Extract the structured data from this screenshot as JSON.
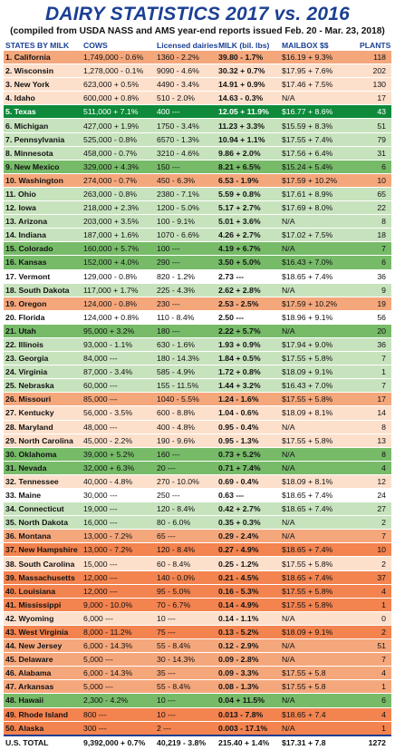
{
  "header": {
    "title": "DAIRY STATISTICS 2017 vs. 2016",
    "subtitle": "(compiled from USDA NASS and AMS year-end reports issued Feb. 20 - Mar. 23, 2018)"
  },
  "columns": [
    "STATES BY MILK",
    "COWS",
    "Licensed dairies",
    "MILK (bil. lbs)",
    "MAILBOX $$",
    "PLANTS"
  ],
  "colors": {
    "title": "#1b3f93",
    "orange": "#f5a77c",
    "peach": "#fde0cc",
    "green": "#c7e3bd",
    "dark_green": "#77bb69",
    "red": "#f3834f",
    "texas_highlight": "#0e8a3a"
  },
  "rows": [
    {
      "state": "1. California",
      "cows": "1,749,000 - 0.6%",
      "dairies": "1360 - 2.2%",
      "milk": "39.80 - 1.7%",
      "mailbox": "$16.19 + 9.3%",
      "plants": "118",
      "tone": "orange"
    },
    {
      "state": "2. Wisconsin",
      "cows": "1,278,000 - 0.1%",
      "dairies": "9090 - 4.6%",
      "milk": "30.32 + 0.7%",
      "mailbox": "$17.95 + 7.6%",
      "plants": "202",
      "tone": "peach"
    },
    {
      "state": "3. New York",
      "cows": "623,000 + 0.5%",
      "dairies": "4490 - 3.4%",
      "milk": "14.91 + 0.9%",
      "mailbox": "$17.46 + 7.5%",
      "plants": "130",
      "tone": "peach"
    },
    {
      "state": "4. Idaho",
      "cows": "600,000 + 0.8%",
      "dairies": "510 - 2.0%",
      "milk": "14.63 - 0.3%",
      "mailbox": "N/A",
      "plants": "17",
      "tone": "peach"
    },
    {
      "state": "5. Texas",
      "cows": "511,000 + 7.1%",
      "dairies": "400 ---",
      "milk": "12.05 + 11.9%",
      "mailbox": "$16.77 + 8.6%",
      "plants": "43",
      "tone": "top"
    },
    {
      "state": "6. Michigan",
      "cows": "427,000 + 1.9%",
      "dairies": "1750 - 3.4%",
      "milk": "11.23 + 3.3%",
      "mailbox": "$15.59 + 8.3%",
      "plants": "51",
      "tone": "green"
    },
    {
      "state": "7. Pennsylvania",
      "cows": "525,000 - 0.8%",
      "dairies": "6570 - 1.3%",
      "milk": "10.94 + 1.1%",
      "mailbox": "$17.55 + 7.4%",
      "plants": "79",
      "tone": "green"
    },
    {
      "state": "8. Minnesota",
      "cows": "458,000 - 0.7%",
      "dairies": "3210 - 4.6%",
      "milk": "9.86 + 2.0%",
      "mailbox": "$17.56 + 6.4%",
      "plants": "31",
      "tone": "green"
    },
    {
      "state": "9. New Mexico",
      "cows": "329,000 + 4.3%",
      "dairies": "150 ---",
      "milk": "8.21 + 6.5%",
      "mailbox": "$15.24 + 5.4%",
      "plants": "6",
      "tone": "dgreen"
    },
    {
      "state": "10. Washington",
      "cows": "274,000 - 0.7%",
      "dairies": "450 - 6.3%",
      "milk": "6.53 - 1.9%",
      "mailbox": "$17.59 + 10.2%",
      "plants": "10",
      "tone": "orange"
    },
    {
      "state": "11. Ohio",
      "cows": "263,000 - 0.8%",
      "dairies": "2380 - 7.1%",
      "milk": "5.59 + 0.8%",
      "mailbox": "$17.61 + 8.9%",
      "plants": "65",
      "tone": "green"
    },
    {
      "state": "12. Iowa",
      "cows": "218,000 + 2.3%",
      "dairies": "1200 - 5.0%",
      "milk": "5.17 + 2.7%",
      "mailbox": "$17.69 + 8.0%",
      "plants": "22",
      "tone": "green"
    },
    {
      "state": "13. Arizona",
      "cows": "203,000 + 3.5%",
      "dairies": "100 - 9.1%",
      "milk": "5.01 + 3.6%",
      "mailbox": "N/A",
      "plants": "8",
      "tone": "green"
    },
    {
      "state": "14. Indiana",
      "cows": "187,000 + 1.6%",
      "dairies": "1070 - 6.6%",
      "milk": "4.26 + 2.7%",
      "mailbox": "$17.02 + 7.5%",
      "plants": "18",
      "tone": "green"
    },
    {
      "state": "15. Colorado",
      "cows": "160,000 + 5.7%",
      "dairies": "100 ---",
      "milk": "4.19 + 6.7%",
      "mailbox": "N/A",
      "plants": "7",
      "tone": "dgreen"
    },
    {
      "state": "16. Kansas",
      "cows": "152,000 + 4.0%",
      "dairies": "290 ---",
      "milk": "3.50 + 5.0%",
      "mailbox": "$16.43 + 7.0%",
      "plants": "6",
      "tone": "dgreen"
    },
    {
      "state": "17. Vermont",
      "cows": "129,000 - 0.8%",
      "dairies": "820 - 1.2%",
      "milk": "2.73 ---",
      "mailbox": "$18.65 + 7.4%",
      "plants": "36",
      "tone": "white"
    },
    {
      "state": "18. South Dakota",
      "cows": "117,000 + 1.7%",
      "dairies": "225 - 4.3%",
      "milk": "2.62 + 2.8%",
      "mailbox": "N/A",
      "plants": "9",
      "tone": "green"
    },
    {
      "state": "19. Oregon",
      "cows": "124,000 - 0.8%",
      "dairies": "230 ---",
      "milk": "2.53 - 2.5%",
      "mailbox": "$17.59 + 10.2%",
      "plants": "19",
      "tone": "orange"
    },
    {
      "state": "20. Florida",
      "cows": "124,000 + 0.8%",
      "dairies": "110 - 8.4%",
      "milk": "2.50 ---",
      "mailbox": "$18.96 + 9.1%",
      "plants": "56",
      "tone": "white"
    },
    {
      "state": "21. Utah",
      "cows": "95,000 + 3.2%",
      "dairies": "180 ---",
      "milk": "2.22 + 5.7%",
      "mailbox": "N/A",
      "plants": "20",
      "tone": "dgreen"
    },
    {
      "state": "22. Illinois",
      "cows": "93,000 - 1.1%",
      "dairies": "630 - 1.6%",
      "milk": "1.93 + 0.9%",
      "mailbox": "$17.94 + 9.0%",
      "plants": "36",
      "tone": "green"
    },
    {
      "state": "23. Georgia",
      "cows": "84,000 ---",
      "dairies": "180 - 14.3%",
      "milk": "1.84 + 0.5%",
      "mailbox": "$17.55 + 5.8%",
      "plants": "7",
      "tone": "green"
    },
    {
      "state": "24. Virginia",
      "cows": "87,000 - 3.4%",
      "dairies": "585 - 4.9%",
      "milk": "1.72 + 0.8%",
      "mailbox": "$18.09 + 9.1%",
      "plants": "1",
      "tone": "green"
    },
    {
      "state": "25. Nebraska",
      "cows": "60,000 ---",
      "dairies": "155 - 11.5%",
      "milk": "1.44 + 3.2%",
      "mailbox": "$16.43 + 7.0%",
      "plants": "7",
      "tone": "green"
    },
    {
      "state": "26. Missouri",
      "cows": "85,000 ---",
      "dairies": "1040 - 5.5%",
      "milk": "1.24 - 1.6%",
      "mailbox": "$17.55 + 5.8%",
      "plants": "17",
      "tone": "orange"
    },
    {
      "state": "27. Kentucky",
      "cows": "56,000 - 3.5%",
      "dairies": "600 - 8.8%",
      "milk": "1.04 - 0.6%",
      "mailbox": "$18.09 + 8.1%",
      "plants": "14",
      "tone": "peach"
    },
    {
      "state": "28. Maryland",
      "cows": "48,000 ---",
      "dairies": "400 - 4.8%",
      "milk": "0.95 - 0.4%",
      "mailbox": "N/A",
      "plants": "8",
      "tone": "peach"
    },
    {
      "state": "29. North Carolina",
      "cows": "45,000 - 2.2%",
      "dairies": "190 - 9.6%",
      "milk": "0.95 - 1.3%",
      "mailbox": "$17.55 + 5.8%",
      "plants": "13",
      "tone": "peach"
    },
    {
      "state": "30. Oklahoma",
      "cows": "39,000 + 5.2%",
      "dairies": "160 ---",
      "milk": "0.73 + 5.2%",
      "mailbox": "N/A",
      "plants": "8",
      "tone": "dgreen"
    },
    {
      "state": "31. Nevada",
      "cows": "32,000 + 6.3%",
      "dairies": "20 ---",
      "milk": "0.71 + 7.4%",
      "mailbox": "N/A",
      "plants": "4",
      "tone": "dgreen"
    },
    {
      "state": "32. Tennessee",
      "cows": "40,000 - 4.8%",
      "dairies": "270 - 10.0%",
      "milk": "0.69 - 0.4%",
      "mailbox": "$18.09 + 8.1%",
      "plants": "12",
      "tone": "peach"
    },
    {
      "state": "33. Maine",
      "cows": "30,000 ---",
      "dairies": "250 ---",
      "milk": "0.63 ---",
      "mailbox": "$18.65 + 7.4%",
      "plants": "24",
      "tone": "white"
    },
    {
      "state": "34. Connecticut",
      "cows": "19,000 ---",
      "dairies": "120 - 8.4%",
      "milk": "0.42 + 2.7%",
      "mailbox": "$18.65 + 7.4%",
      "plants": "27",
      "tone": "green"
    },
    {
      "state": "35. North Dakota",
      "cows": "16,000 ---",
      "dairies": "80 - 6.0%",
      "milk": "0.35 + 0.3%",
      "mailbox": "N/A",
      "plants": "2",
      "tone": "green"
    },
    {
      "state": "36. Montana",
      "cows": "13,000 - 7.2%",
      "dairies": "65 ---",
      "milk": "0.29 - 2.4%",
      "mailbox": "N/A",
      "plants": "7",
      "tone": "orange"
    },
    {
      "state": "37. New Hampshire",
      "cows": "13,000 - 7.2%",
      "dairies": "120 - 8.4%",
      "milk": "0.27 - 4.9%",
      "mailbox": "$18.65 + 7.4%",
      "plants": "10",
      "tone": "red"
    },
    {
      "state": "38. South Carolina",
      "cows": "15,000 ---",
      "dairies": "60 - 8.4%",
      "milk": "0.25 - 1.2%",
      "mailbox": "$17.55 + 5.8%",
      "plants": "2",
      "tone": "peach"
    },
    {
      "state": "39. Massachusetts",
      "cows": "12,000 ---",
      "dairies": "140 - 0.0%",
      "milk": "0.21 - 4.5%",
      "mailbox": "$18.65 + 7.4%",
      "plants": "37",
      "tone": "red"
    },
    {
      "state": "40. Louisiana",
      "cows": "12,000 ---",
      "dairies": "95 - 5.0%",
      "milk": "0.16 - 5.3%",
      "mailbox": "$17.55 + 5.8%",
      "plants": "4",
      "tone": "red"
    },
    {
      "state": "41. Mississippi",
      "cows": "9,000 - 10.0%",
      "dairies": "70 - 6.7%",
      "milk": "0.14 - 4.9%",
      "mailbox": "$17.55 + 5.8%",
      "plants": "1",
      "tone": "red"
    },
    {
      "state": "42. Wyoming",
      "cows": "6,000 ---",
      "dairies": "10 ---",
      "milk": "0.14 - 1.1%",
      "mailbox": "N/A",
      "plants": "0",
      "tone": "peach"
    },
    {
      "state": "43. West Virginia",
      "cows": "8,000 - 11.2%",
      "dairies": "75 ---",
      "milk": "0.13 - 5.2%",
      "mailbox": "$18.09 + 9.1%",
      "plants": "2",
      "tone": "red"
    },
    {
      "state": "44. New Jersey",
      "cows": "6,000 - 14.3%",
      "dairies": "55 - 8.4%",
      "milk": "0.12 - 2.9%",
      "mailbox": "N/A",
      "plants": "51",
      "tone": "orange"
    },
    {
      "state": "45. Delaware",
      "cows": "5,000 ---",
      "dairies": "30 - 14.3%",
      "milk": "0.09 - 2.8%",
      "mailbox": "N/A",
      "plants": "7",
      "tone": "orange"
    },
    {
      "state": "46. Alabama",
      "cows": "6,000 - 14.3%",
      "dairies": "35 ---",
      "milk": "0.09 - 3.3%",
      "mailbox": "$17.55 + 5.8",
      "plants": "4",
      "tone": "orange"
    },
    {
      "state": "47. Arkansas",
      "cows": "5,000 ---",
      "dairies": "55 - 8.4%",
      "milk": "0.08 - 1.3%",
      "mailbox": "$17.55 + 5.8",
      "plants": "1",
      "tone": "orange"
    },
    {
      "state": "48. Hawaii",
      "cows": "2,300 - 4.2%",
      "dairies": "10 ---",
      "milk": "0.04 + 11.5%",
      "mailbox": "N/A",
      "plants": "6",
      "tone": "dgreen"
    },
    {
      "state": "49. Rhode Island",
      "cows": "800 ---",
      "dairies": "10 ---",
      "milk": "0.013 - 7.8%",
      "mailbox": "$18.65 + 7.4",
      "plants": "4",
      "tone": "red"
    },
    {
      "state": "50. Alaska",
      "cows": "300 ---",
      "dairies": "2 ---",
      "milk": "0.003 - 17.1%",
      "mailbox": "N/A",
      "plants": "1",
      "tone": "red"
    }
  ],
  "total": {
    "state": "U.S. TOTAL",
    "cows": "9,392,000 + 0.7%",
    "dairies": "40,219 - 3.8%",
    "milk": "215.40 + 1.4%",
    "mailbox": "$17.31 + 7.8",
    "plants": "1272"
  }
}
